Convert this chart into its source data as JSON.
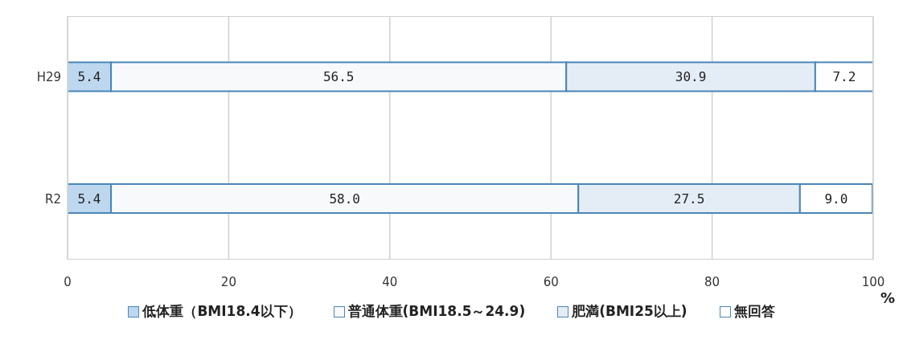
{
  "chart_data": {
    "type": "bar",
    "orientation": "horizontal",
    "stacked": true,
    "categories": [
      "H29",
      "R2"
    ],
    "series": [
      {
        "name": "低体重（BMI18.4以下）",
        "color": "#bdd7ee",
        "values": [
          5.4,
          5.4
        ],
        "value_labels": [
          "5.4",
          "5.4"
        ]
      },
      {
        "name": "普通体重(BMI18.5～24.9)",
        "color": "#f7f9fb",
        "values": [
          56.5,
          58.0
        ],
        "value_labels": [
          "56.5",
          "58.0"
        ]
      },
      {
        "name": "肥満(BMI25以上)",
        "color": "#e4edf5",
        "values": [
          30.9,
          27.5
        ],
        "value_labels": [
          "30.9",
          "27.5"
        ]
      },
      {
        "name": "無回答",
        "color": "#ffffff",
        "values": [
          7.2,
          9.0
        ],
        "value_labels": [
          "7.2",
          "9.0"
        ]
      }
    ],
    "xlim": [
      0,
      100
    ],
    "xticks": [
      0,
      20,
      40,
      60,
      80,
      100
    ],
    "xlabel": "%",
    "grid": "x",
    "legend": "bottom"
  }
}
